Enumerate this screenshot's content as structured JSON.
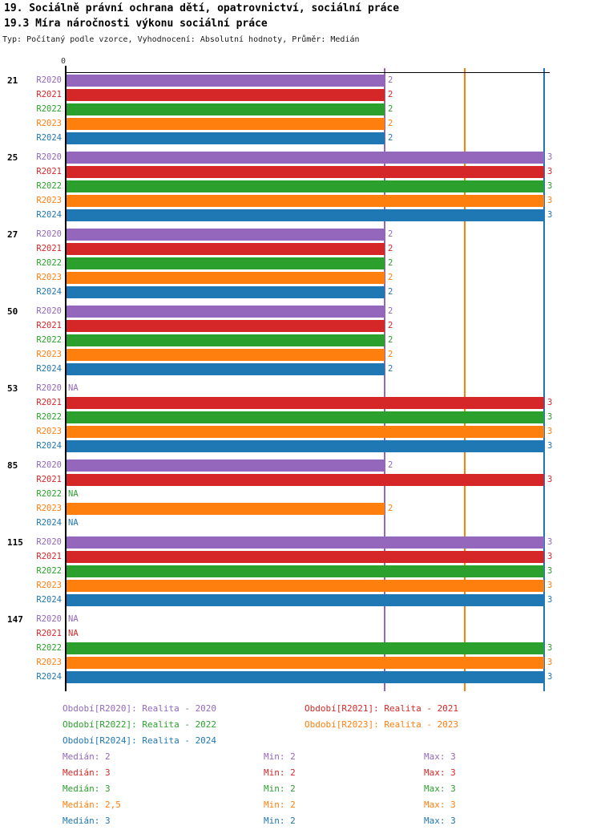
{
  "header": {
    "title": "19. Sociálně právní ochrana dětí, opatrovnictví, sociální práce",
    "subtitle": "19.3 Míra náročnosti výkonu sociální práce",
    "meta": "Typ: Počítaný podle vzorce, Vyhodnocení: Absolutní hodnoty, Průměr: Medián"
  },
  "chart_data": {
    "type": "bar",
    "orientation": "horizontal",
    "title": "19.3 Míra náročnosti výkonu sociální práce",
    "x_origin_label": "0",
    "xlim": [
      0,
      3.05
    ],
    "grid": "median-lines-vertical",
    "na_text": "NA",
    "categories": [
      "21",
      "25",
      "27",
      "50",
      "53",
      "85",
      "115",
      "147"
    ],
    "series": [
      {
        "name": "R2020",
        "color": "#9467bd",
        "values": [
          2,
          3,
          2,
          2,
          null,
          2,
          3,
          null
        ],
        "legend": "Období[R2020]: Realita - 2020",
        "median": 2,
        "min": 2,
        "max": 3,
        "stats": {
          "median": "Medián: 2",
          "min": "Min: 2",
          "max": "Max: 3"
        }
      },
      {
        "name": "R2021",
        "color": "#d62728",
        "values": [
          2,
          3,
          2,
          2,
          3,
          3,
          3,
          null
        ],
        "legend": "Období[R2021]: Realita - 2021",
        "median": 3,
        "min": 2,
        "max": 3,
        "stats": {
          "median": "Medián: 3",
          "min": "Min: 2",
          "max": "Max: 3"
        }
      },
      {
        "name": "R2022",
        "color": "#2ca02c",
        "values": [
          2,
          3,
          2,
          2,
          3,
          null,
          3,
          3
        ],
        "legend": "Období[R2022]: Realita - 2022",
        "median": 3,
        "min": 2,
        "max": 3,
        "stats": {
          "median": "Medián: 3",
          "min": "Min: 2",
          "max": "Max: 3"
        }
      },
      {
        "name": "R2023",
        "color": "#ff7f0e",
        "values": [
          2,
          3,
          2,
          2,
          3,
          2,
          3,
          3
        ],
        "legend": "Období[R2023]: Realita - 2023",
        "median": 2.5,
        "min": 2,
        "max": 3,
        "stats": {
          "median": "Medián: 2,5",
          "min": "Min: 2",
          "max": "Max: 3"
        }
      },
      {
        "name": "R2024",
        "color": "#1f77b4",
        "values": [
          2,
          3,
          2,
          2,
          3,
          null,
          3,
          3
        ],
        "legend": "Období[R2024]: Realita - 2024",
        "median": 3,
        "min": 2,
        "max": 3,
        "stats": {
          "median": "Medián: 3",
          "min": "Min: 2",
          "max": "Max: 3"
        }
      }
    ],
    "legend_rows": [
      [
        0,
        1
      ],
      [
        2,
        3
      ],
      [
        4
      ]
    ]
  }
}
